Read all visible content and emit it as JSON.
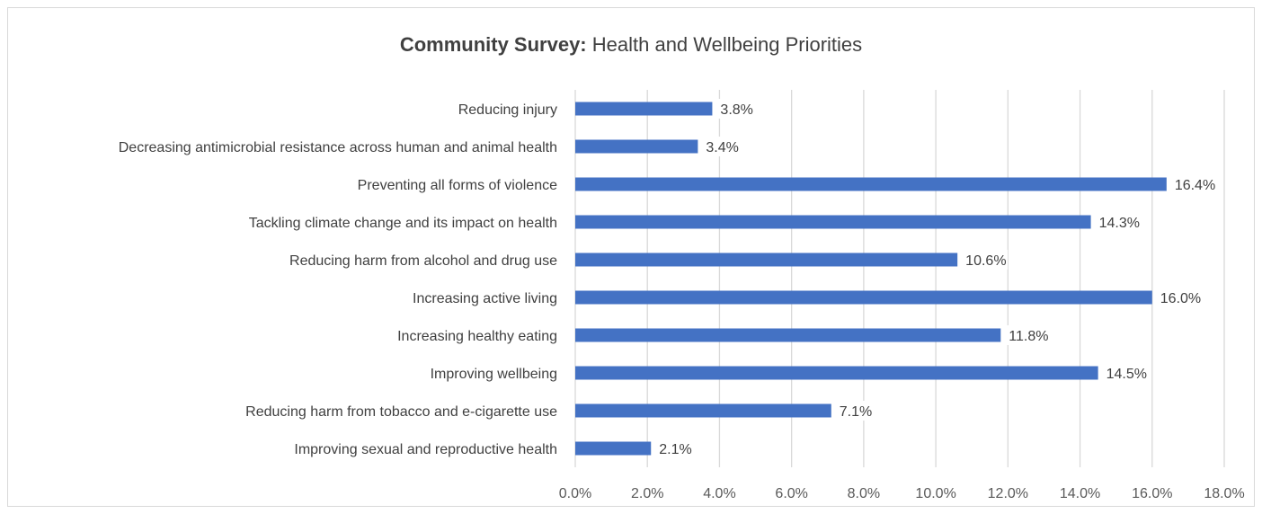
{
  "chart_data": {
    "type": "bar",
    "orientation": "horizontal",
    "title_bold": "Community Survey:",
    "title_rest": " Health and Wellbeing Priorities",
    "categories": [
      "Reducing injury",
      "Decreasing antimicrobial resistance across human and animal health",
      "Preventing all forms of violence",
      "Tackling climate change and its impact on health",
      "Reducing harm from alcohol and drug use",
      "Increasing active living",
      "Increasing healthy eating",
      "Improving wellbeing",
      "Reducing harm from tobacco and e-cigarette use",
      "Improving sexual and reproductive health"
    ],
    "values": [
      3.8,
      3.4,
      16.4,
      14.3,
      10.6,
      16.0,
      11.8,
      14.5,
      7.1,
      2.1
    ],
    "data_labels": [
      "3.8%",
      "3.4%",
      "16.4%",
      "14.3%",
      "10.6%",
      "16.0%",
      "11.8%",
      "14.5%",
      "7.1%",
      "2.1%"
    ],
    "xlim": [
      0,
      18
    ],
    "x_ticks": [
      0,
      2,
      4,
      6,
      8,
      10,
      12,
      14,
      16,
      18
    ],
    "x_tick_labels": [
      "0.0%",
      "2.0%",
      "4.0%",
      "6.0%",
      "8.0%",
      "10.0%",
      "12.0%",
      "14.0%",
      "16.0%",
      "18.0%"
    ],
    "xlabel": "",
    "ylabel": "",
    "grid": "vertical",
    "legend": "none",
    "bar_color": "#4472c4",
    "grid_color": "#d9d9d9"
  }
}
